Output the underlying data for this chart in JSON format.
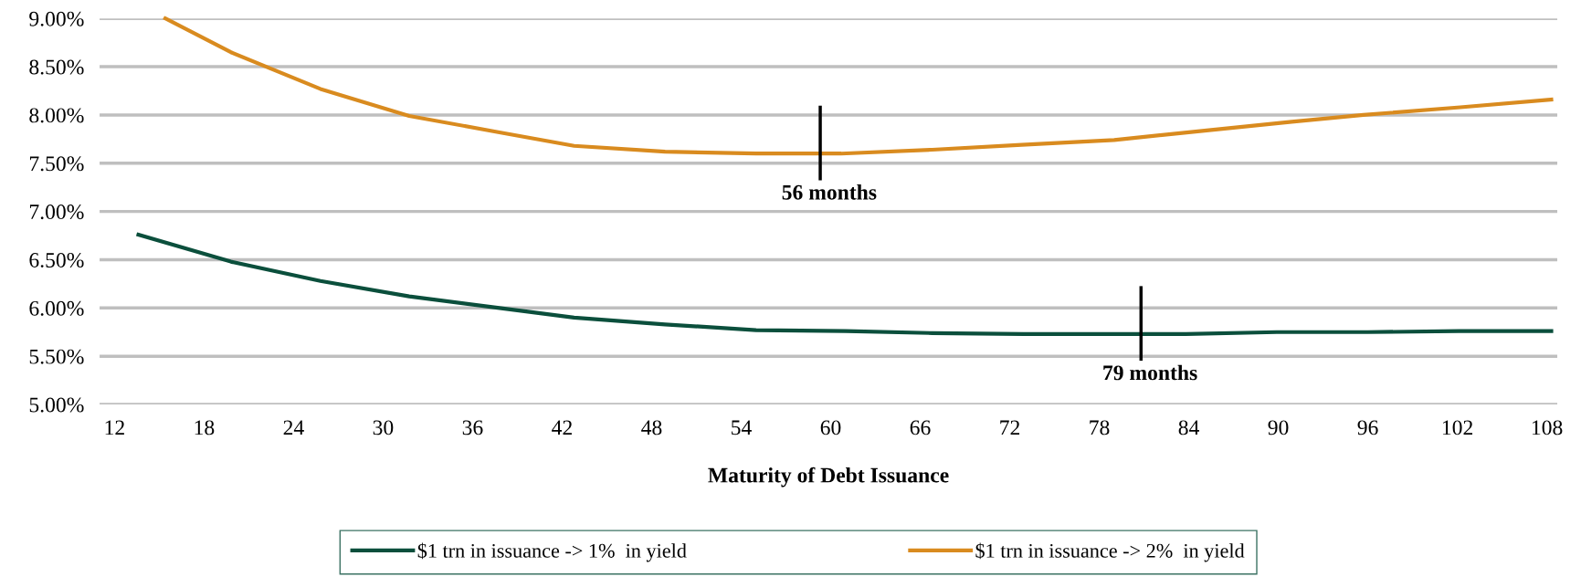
{
  "chart_data": {
    "type": "line",
    "xlabel": "Maturity of Debt Issuance",
    "xlim": [
      11,
      108.7
    ],
    "xticks": [
      12,
      18,
      24,
      30,
      36,
      42,
      48,
      54,
      60,
      66,
      72,
      78,
      84,
      90,
      96,
      102,
      108
    ],
    "ylim": [
      5,
      9
    ],
    "yticks": [
      {
        "value": 5,
        "label": "5.00%"
      },
      {
        "value": 5.5,
        "label": "5.50%"
      },
      {
        "value": 6,
        "label": "6.00%"
      },
      {
        "value": 6.5,
        "label": "6.50%"
      },
      {
        "value": 7,
        "label": "7.00%"
      },
      {
        "value": 7.5,
        "label": "7.50%"
      },
      {
        "value": 8,
        "label": "8.00%"
      },
      {
        "value": 8.5,
        "label": "8.50%"
      },
      {
        "value": 9,
        "label": "9.00%"
      }
    ],
    "grid": "y",
    "legend": "bottom",
    "marker": "none",
    "line_style": "solid",
    "series": [
      {
        "name": "$1 trn in issuance -> 1%  in yield",
        "color": "#0b4f3c",
        "x": [
          13.6,
          19.8,
          25.8,
          31.75,
          37.8,
          42.8,
          48.9,
          55,
          61,
          66.8,
          72.9,
          79,
          83.8,
          89.9,
          96,
          102.1,
          108.3
        ],
        "values": [
          6.76,
          6.48,
          6.28,
          6.12,
          6.0,
          5.9,
          5.83,
          5.77,
          5.76,
          5.74,
          5.73,
          5.73,
          5.73,
          5.75,
          5.75,
          5.76,
          5.76
        ]
      },
      {
        "name": "$1 trn in issuance -> 2%  in yield",
        "color": "#d98b1f",
        "x": [
          15.4,
          19.8,
          25.8,
          31.75,
          37.8,
          42.8,
          48.9,
          55,
          60.7,
          66.8,
          72.8,
          79,
          85.2,
          90.9,
          95.7,
          102.2,
          108.3
        ],
        "values": [
          9.0,
          8.65,
          8.27,
          7.99,
          7.82,
          7.68,
          7.62,
          7.6,
          7.6,
          7.64,
          7.69,
          7.74,
          7.84,
          7.93,
          8.0,
          8.08,
          8.16
        ]
      }
    ],
    "annotations": [
      {
        "text": "56 months",
        "x": 59.3,
        "y": 7.6
      },
      {
        "text": "79 months",
        "x": 80.8,
        "y": 5.73
      }
    ]
  }
}
